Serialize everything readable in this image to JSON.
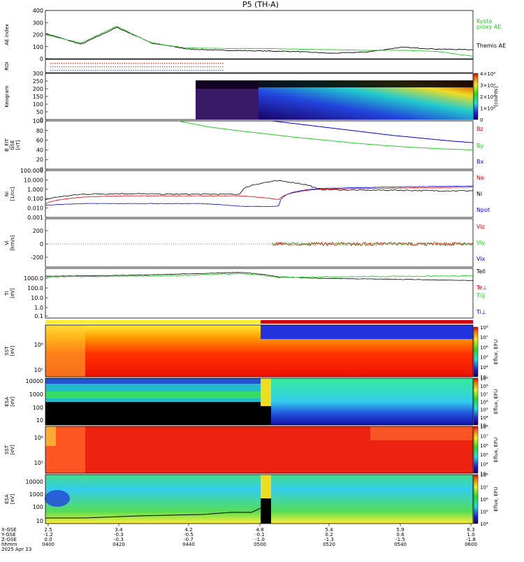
{
  "title": "P5 (TH-A)",
  "date": "2025 Apr 23",
  "colors": {
    "green": "#22cc22",
    "red": "#dd0000",
    "blue": "#0000dd",
    "black": "#000000",
    "bar_yellow": "#ffee33",
    "bar_red": "#cc0011"
  },
  "ae_panel": {
    "ylabel": "AE index",
    "ticks": [
      "400",
      "300",
      "200",
      "100",
      "0"
    ],
    "legend_green": [
      "Kyoto",
      "proxy AE"
    ],
    "legend_black": "Themis AE"
  },
  "roi_panel": {
    "ylabel": "ROI"
  },
  "keogram_panel": {
    "ylabel": "Keogram",
    "ticks": [
      "300",
      "250",
      "200",
      "150",
      "100",
      "50",
      "0"
    ],
    "colorbar_ticks": [
      "4×10⁴",
      "3×10⁴",
      "2×10⁴",
      "1×10⁴",
      "0"
    ],
    "colorbar_label": "[counts]"
  },
  "bfit_panel": {
    "ylabel": [
      "B_FIT",
      "GSE",
      "[nT]"
    ],
    "ticks": [
      "100",
      "80",
      "60",
      "40",
      "20",
      "0"
    ],
    "legend": [
      "Bz",
      "By",
      "Bx"
    ]
  },
  "density_panel": {
    "ylabel": [
      "Ni",
      "[1/cc]"
    ],
    "ticks": [
      "100.000",
      "10.000",
      "1.000",
      "0.100",
      "0.010",
      "0.001"
    ],
    "legend": [
      "Ne",
      "Ni",
      "Npot"
    ]
  },
  "velocity_panel": {
    "ylabel": [
      "Vi",
      "[km/s]"
    ],
    "ticks": [
      "200",
      "0",
      "-200"
    ],
    "legend": [
      "Viz",
      "Viy",
      "Vix"
    ]
  },
  "temp_panel": {
    "ylabel": [
      "Ti",
      "[eV]"
    ],
    "ticks": [
      "1000.0",
      "100.0",
      "10.0",
      "1.0",
      "0.1"
    ],
    "legend": [
      "Tell",
      "Te⊥",
      "Ti||",
      "Ti⊥"
    ]
  },
  "sst_e_panel": {
    "ylabel": [
      "SST",
      "[eV]"
    ],
    "ticks": [
      "10⁶",
      "10⁵"
    ],
    "cb_label": "Eflux, EFU",
    "cb_ticks": [
      "10⁸",
      "10⁷",
      "10⁶",
      "10⁵",
      "10⁴",
      "10⁳"
    ]
  },
  "esa_e_panel": {
    "ylabel": [
      "ESA",
      "[eV]"
    ],
    "ticks": [
      "10000",
      "1000",
      "100",
      "10"
    ],
    "cb_label": "Eflux, EFU",
    "cb_ticks": [
      "10⁹",
      "10⁸",
      "10⁷",
      "10⁶",
      "10⁵",
      "10⁴",
      "10⁳"
    ]
  },
  "sst_i_panel": {
    "ylabel": [
      "SST",
      "[eV]"
    ],
    "ticks": [
      "10⁶",
      "10⁵"
    ],
    "cb_label": "Eflux, EFU",
    "cb_ticks": [
      "10⁸",
      "10⁷",
      "10⁶",
      "10⁵",
      "10⁴",
      "10⁳"
    ]
  },
  "esa_i_panel": {
    "ylabel": [
      "ESA",
      "[eV]"
    ],
    "ticks": [
      "10000",
      "1000",
      "100",
      "10"
    ],
    "cb_label": "Eflux, EFU",
    "cb_ticks": [
      "10⁸",
      "10⁷",
      "10⁶",
      "10⁵",
      "10⁴"
    ]
  },
  "x_axis": {
    "row_labels": [
      "X-GSE",
      "Y-GSE",
      "Z-GSE",
      "hhmm",
      "2025 Apr 23"
    ],
    "columns": [
      {
        "x": "2.5",
        "y": "-1.2",
        "z": "0.0",
        "t": "0400"
      },
      {
        "x": "3.4",
        "y": "-0.3",
        "z": "-0.3",
        "t": "0420"
      },
      {
        "x": "4.2",
        "y": "-0.5",
        "z": "-0.7",
        "t": "0440"
      },
      {
        "x": "4.8",
        "y": "-0.1",
        "z": "-1.0",
        "t": "0500"
      },
      {
        "x": "5.4",
        "y": "0.2",
        "z": "-1.3",
        "t": "0520"
      },
      {
        "x": "5.9",
        "y": "0.6",
        "z": "-1.5",
        "t": "0540"
      },
      {
        "x": "6.3",
        "y": "1.0",
        "z": "-1.8",
        "t": "0600"
      }
    ]
  },
  "chart_data": [
    {
      "type": "line",
      "panel": "AE index",
      "x_unit": "hhmm",
      "x": [
        "0400",
        "0410",
        "0420",
        "0430",
        "0440",
        "0450",
        "0500",
        "0510",
        "0520",
        "0530",
        "0540",
        "0550",
        "0600"
      ],
      "series": [
        {
          "name": "Themis AE",
          "values": [
            210,
            120,
            260,
            130,
            80,
            70,
            65,
            60,
            45,
            55,
            95,
            80,
            75
          ]
        },
        {
          "name": "Kyoto proxy AE",
          "values": [
            200,
            130,
            270,
            125,
            90,
            85,
            85,
            80,
            75,
            70,
            70,
            60,
            20
          ]
        }
      ],
      "ylim": [
        0,
        400
      ]
    },
    {
      "type": "line",
      "panel": "B_FIT GSE [nT]",
      "series": [
        {
          "name": "Bz",
          "values": []
        },
        {
          "name": "By",
          "values": [
            100,
            88,
            80,
            73,
            66,
            60,
            54,
            49,
            45,
            42,
            40
          ]
        },
        {
          "name": "Bx",
          "values": [
            100,
            95,
            90,
            85,
            80,
            75,
            70,
            66,
            62,
            58,
            55
          ]
        }
      ],
      "ylim": [
        0,
        100
      ]
    },
    {
      "type": "line",
      "panel": "Ni [1/cc]",
      "scale": "log",
      "series": [
        {
          "name": "Ne",
          "values": [
            0.03,
            0.15,
            0.2,
            0.2,
            0.2,
            0.2,
            0.08,
            1.0,
            1.2,
            1.3,
            1.5,
            1.7
          ]
        },
        {
          "name": "Ni",
          "values": [
            0.08,
            0.3,
            0.35,
            0.3,
            0.3,
            0.3,
            8.0,
            1.0,
            0.8,
            0.8,
            0.7,
            0.7
          ]
        },
        {
          "name": "Npot",
          "values": [
            0.02,
            0.03,
            0.03,
            0.03,
            0.03,
            0.015,
            0.015,
            1.2,
            1.5,
            1.8,
            2.0,
            2.2
          ]
        }
      ],
      "ylim": [
        0.001,
        100
      ]
    },
    {
      "type": "line",
      "panel": "Vi [km/s]",
      "series": [
        {
          "name": "Viz",
          "values": [
            0,
            0,
            0,
            0,
            0
          ]
        },
        {
          "name": "Viy",
          "values": [
            0,
            0,
            0,
            0,
            0
          ]
        }
      ],
      "ylim": [
        -350,
        350
      ]
    },
    {
      "type": "line",
      "panel": "Ti [eV]",
      "scale": "log",
      "series": [
        {
          "name": "Tell",
          "values": [
            800,
            900,
            1000,
            1200,
            1500,
            2000,
            700,
            500,
            450,
            400,
            350,
            300
          ]
        },
        {
          "name": "Ti||",
          "values": [
            700,
            750,
            800,
            900,
            1100,
            1500,
            600,
            700,
            750,
            800,
            850,
            900
          ]
        }
      ],
      "ylim": [
        0.05,
        5000
      ]
    }
  ]
}
